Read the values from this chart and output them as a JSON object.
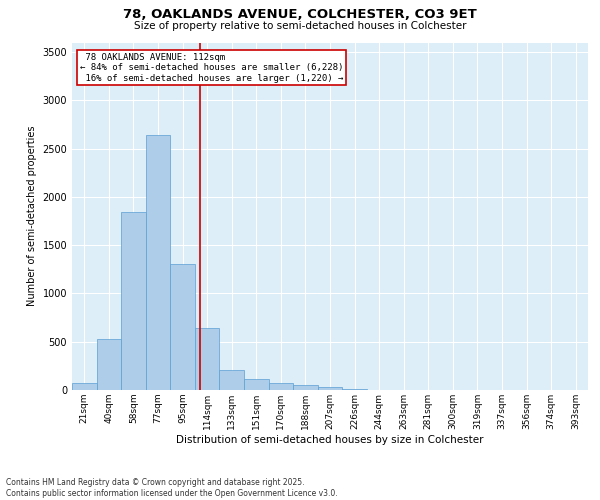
{
  "title": "78, OAKLANDS AVENUE, COLCHESTER, CO3 9ET",
  "subtitle": "Size of property relative to semi-detached houses in Colchester",
  "xlabel": "Distribution of semi-detached houses by size in Colchester",
  "ylabel": "Number of semi-detached properties",
  "footnote1": "Contains HM Land Registry data © Crown copyright and database right 2025.",
  "footnote2": "Contains public sector information licensed under the Open Government Licence v3.0.",
  "bins": [
    "21sqm",
    "40sqm",
    "58sqm",
    "77sqm",
    "95sqm",
    "114sqm",
    "133sqm",
    "151sqm",
    "170sqm",
    "188sqm",
    "207sqm",
    "226sqm",
    "244sqm",
    "263sqm",
    "281sqm",
    "300sqm",
    "319sqm",
    "337sqm",
    "356sqm",
    "374sqm",
    "393sqm"
  ],
  "values": [
    75,
    530,
    1840,
    2640,
    1310,
    640,
    210,
    110,
    75,
    55,
    30,
    10,
    5,
    2,
    0,
    0,
    0,
    0,
    0,
    0,
    0
  ],
  "bar_color": "#aecde8",
  "bar_edge_color": "#5a9fd4",
  "background_color": "#ddeef9",
  "grid_color": "#ffffff",
  "property_label": "78 OAKLANDS AVENUE: 112sqm",
  "pct_smaller": "84%",
  "n_smaller": "6,228",
  "pct_larger": "16%",
  "n_larger": "1,220",
  "vline_color": "#cc0000",
  "annotation_box_color": "#cc0000",
  "ylim": [
    0,
    3600
  ],
  "yticks": [
    0,
    500,
    1000,
    1500,
    2000,
    2500,
    3000,
    3500
  ]
}
